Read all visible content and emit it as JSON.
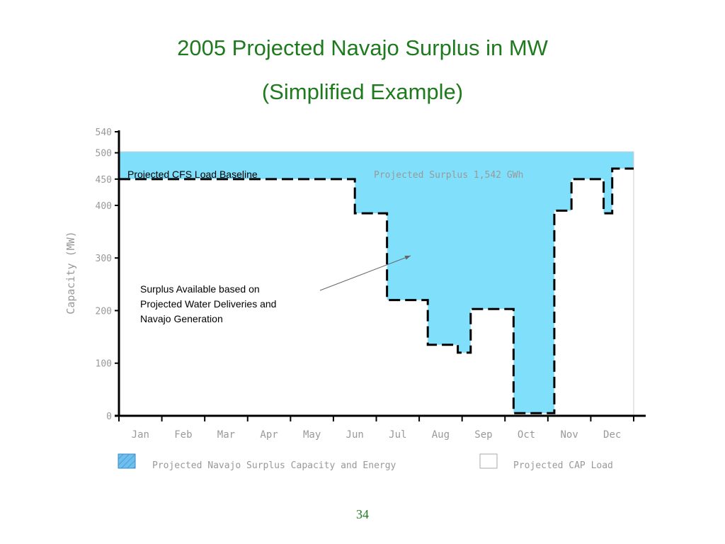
{
  "slide": {
    "title": "2005 Projected Navajo Surplus in MW",
    "subtitle": "(Simplified Example)",
    "page_number": "34"
  },
  "colors": {
    "title": "#1f7a1f",
    "surplus_fill": "#80e0fb",
    "axis": "#000000",
    "tick_label": "#999999"
  },
  "chart_data": {
    "type": "area",
    "title": "",
    "xlabel": "",
    "ylabel": "Capacity (MW)",
    "categories": [
      "Jan",
      "Feb",
      "Mar",
      "Apr",
      "May",
      "Jun",
      "Jul",
      "Aug",
      "Sep",
      "Oct",
      "Nov",
      "Dec"
    ],
    "y_ticks": [
      0,
      100,
      200,
      300,
      400,
      450,
      500,
      540
    ],
    "ylim": [
      0,
      540
    ],
    "grid": false,
    "series": [
      {
        "name": "Projected Navajo Surplus Capacity and Energy",
        "steps": [
          {
            "x_start": 0,
            "x_end": 12,
            "y": 502
          }
        ]
      },
      {
        "name": "Projected CAP Load",
        "steps": [
          {
            "x_start": 0,
            "x_end": 5.5,
            "y": 450
          },
          {
            "x_start": 5.5,
            "x_end": 6.25,
            "y": 385
          },
          {
            "x_start": 6.25,
            "x_end": 7.2,
            "y": 220
          },
          {
            "x_start": 7.2,
            "x_end": 7.9,
            "y": 135
          },
          {
            "x_start": 7.9,
            "x_end": 8.2,
            "y": 120
          },
          {
            "x_start": 8.2,
            "x_end": 9.2,
            "y": 203
          },
          {
            "x_start": 9.2,
            "x_end": 10.15,
            "y": 5
          },
          {
            "x_start": 10.15,
            "x_end": 10.55,
            "y": 390
          },
          {
            "x_start": 10.55,
            "x_end": 11.3,
            "y": 450
          },
          {
            "x_start": 11.3,
            "x_end": 11.5,
            "y": 385
          },
          {
            "x_start": 11.5,
            "x_end": 12,
            "y": 470
          }
        ]
      }
    ],
    "legend_position": "bottom",
    "annotations": {
      "cfs_baseline": "Projected CFS Load Baseline",
      "surplus_total": "Projected Surplus 1,542 GWh",
      "surplus_note_lines": [
        "Surplus Available based on",
        "Projected Water Deliveries and",
        "Navajo Generation"
      ]
    }
  }
}
